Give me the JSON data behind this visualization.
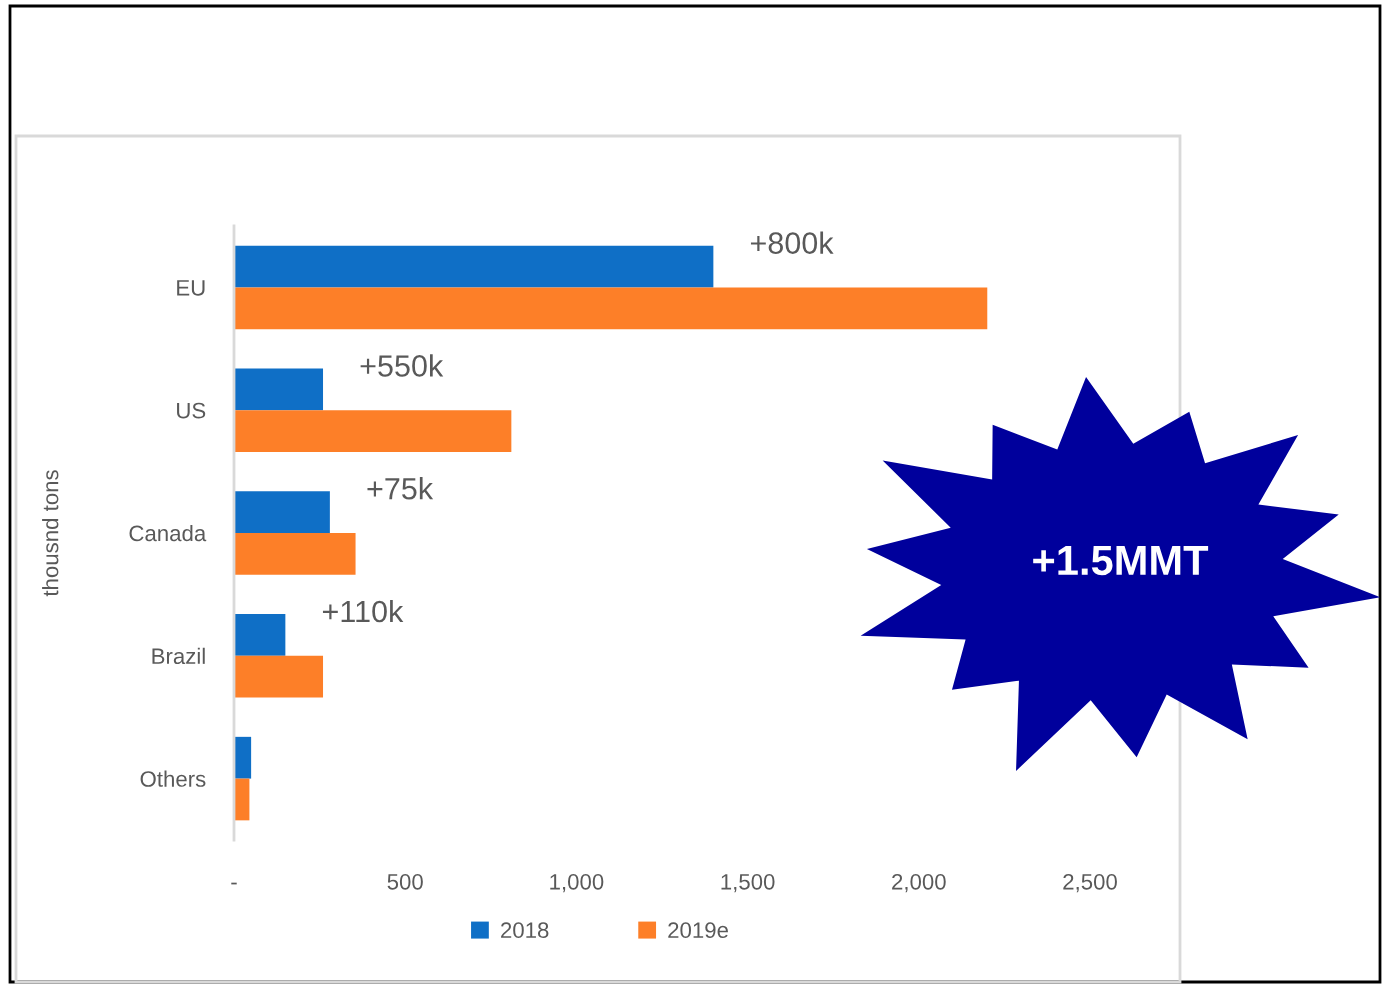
{
  "chart_data": {
    "type": "bar",
    "orientation": "horizontal",
    "ylabel": "thousnd tons",
    "categories": [
      "EU",
      "US",
      "Canada",
      "Brazil",
      "Others"
    ],
    "series": [
      {
        "name": "2018",
        "color": "#0f6fc6",
        "values": [
          1400,
          260,
          280,
          150,
          50
        ]
      },
      {
        "name": "2019e",
        "color": "#fd7f28",
        "values": [
          2200,
          810,
          355,
          260,
          45
        ]
      }
    ],
    "xlim": [
      0,
      2500
    ],
    "xticks": [
      {
        "value": 0,
        "label": "-"
      },
      500,
      {
        "value": 1000,
        "label": "1,000"
      },
      {
        "value": 1500,
        "label": "1,500"
      },
      {
        "value": 2000,
        "label": "2,000"
      },
      {
        "value": 2500,
        "label": "2,500"
      }
    ],
    "legend": "bottom",
    "annotations": [
      {
        "text": "+800k",
        "x": 1400,
        "y": "EU"
      },
      {
        "text": "+550k",
        "x": 260,
        "y": "US"
      },
      {
        "text": "+75k",
        "x": 280,
        "y": "Canada"
      },
      {
        "text": "+110k",
        "x": 150,
        "y": "Brazil"
      },
      "+1.5MMT"
    ]
  }
}
